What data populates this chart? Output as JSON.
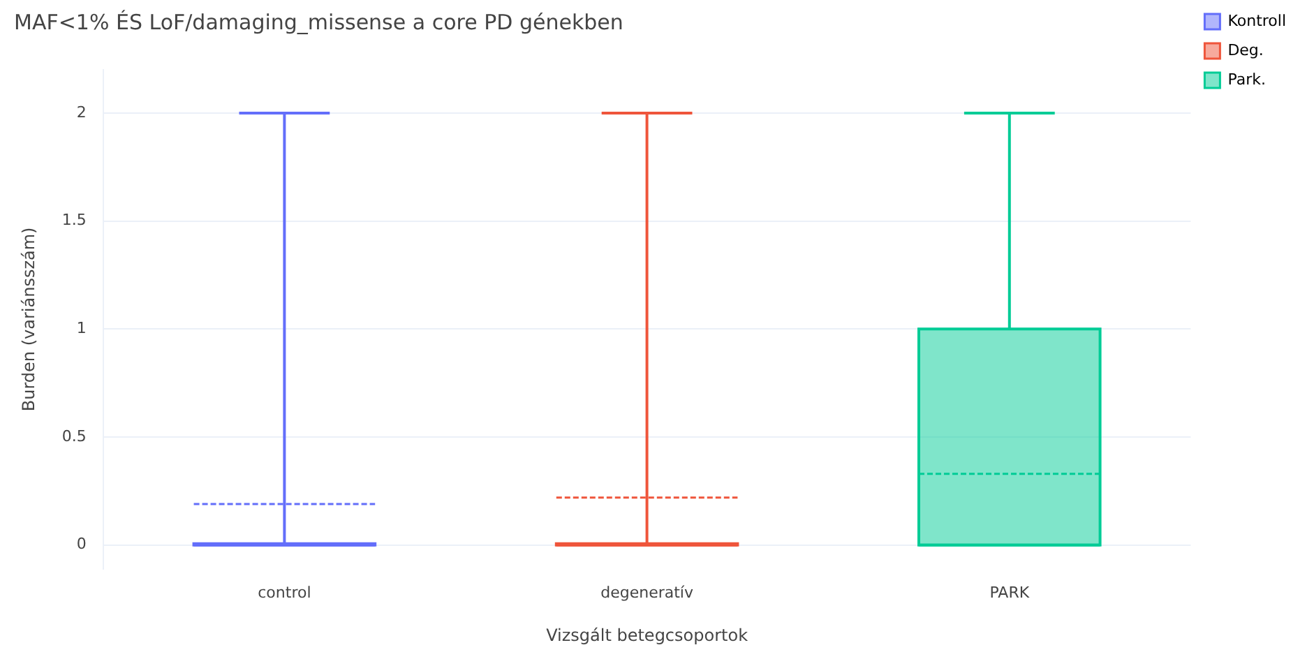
{
  "chart_data": {
    "type": "box",
    "title": "MAF<1% ÉS LoF/damaging_missense a core PD génekben",
    "xlabel": "Vizsgált betegcsoportok",
    "ylabel": "Burden (variánsszám)",
    "categories": [
      "control",
      "degeneratív",
      "PARK"
    ],
    "series": [
      {
        "name": "Kontroll",
        "color": "#636efa",
        "boxes": [
          {
            "low": 0,
            "q1": 0,
            "median": 0,
            "q3": 0,
            "high": 2,
            "mean": 0.19
          },
          null,
          null
        ]
      },
      {
        "name": "Deg.",
        "color": "#ef553b",
        "boxes": [
          null,
          {
            "low": 0,
            "q1": 0,
            "median": 0,
            "q3": 0,
            "high": 2,
            "mean": 0.22
          },
          null
        ]
      },
      {
        "name": "Park.",
        "color": "#00cc96",
        "boxes": [
          null,
          null,
          {
            "low": 0,
            "q1": 0,
            "median": 0,
            "q3": 1,
            "high": 2,
            "mean": 0.33
          }
        ]
      }
    ],
    "ylim": [
      -0.11,
      2.2
    ],
    "yticks": [
      0,
      0.5,
      1,
      1.5,
      2
    ],
    "grid": "y",
    "legend": "top right"
  }
}
